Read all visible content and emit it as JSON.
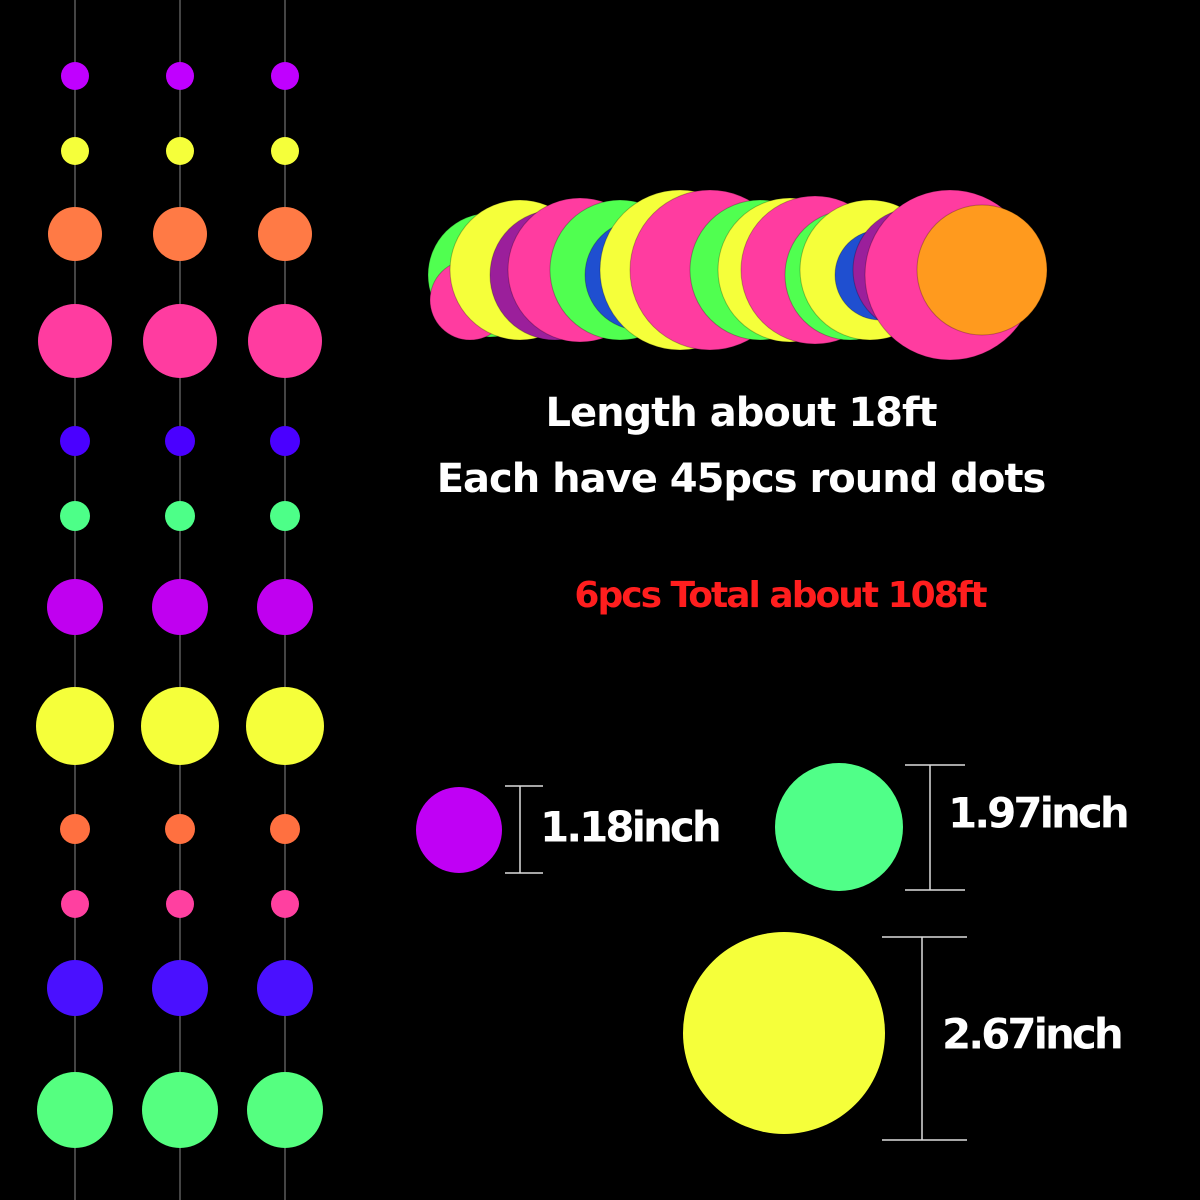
{
  "headline": {
    "lines": [
      "Length about 18ft",
      "Each have 45pcs round dots"
    ]
  },
  "total": "6pcs Total about 108ft",
  "sizes": [
    "1.18inch",
    "1.97inch",
    "2.67inch"
  ]
}
